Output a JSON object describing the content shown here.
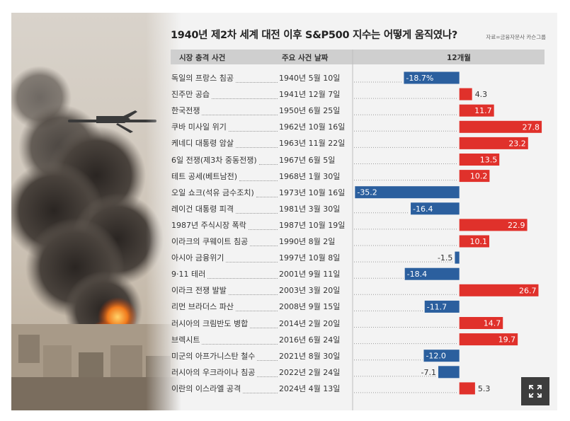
{
  "title": "1940년 제2차 세계 대전 이후 S&P500 지수는 어떻게 움직였나?",
  "source": "자료=금융자문사 카슨그룹",
  "columns": {
    "event": "시장 충격 사건",
    "date": "주요 사건 날짜",
    "value": "12개월"
  },
  "colors": {
    "positive": "#e0312b",
    "negative": "#2b5f9e",
    "header": "#cfcfcf"
  },
  "expand_icon": "expand-icon",
  "chart_data": {
    "type": "bar",
    "orientation": "horizontal",
    "categories": [
      "독일의 프랑스 침공",
      "진주만 공습",
      "한국전쟁",
      "쿠바 미사일 위기",
      "케네디 대통령 암살",
      "6일 전쟁(제3차 중동전쟁)",
      "테트 공세(베트남전)",
      "오일 쇼크(석유 금수조치)",
      "레이건 대통령 피격",
      "1987년 주식시장 폭락",
      "이라크의 쿠웨이트 침공",
      "아시아 금융위기",
      "9·11 테러",
      "이라크 전쟁 발발",
      "리먼 브라더스 파산",
      "러시아의 크림반도 병합",
      "브렉시트",
      "미군의 아프가니스탄 철수",
      "러시아의 우크라이나 침공",
      "이란의 이스라엘 공격"
    ],
    "dates": [
      "1940년 5월 10일",
      "1941년 12월 7일",
      "1950년 6월 25일",
      "1962년 10월 16일",
      "1963년 11월 22일",
      "1967년 6월 5일",
      "1968년 1월 30일",
      "1973년 10월 16일",
      "1981년 3월 30일",
      "1987년 10월 19일",
      "1990년 8월 2일",
      "1997년 10월 8일",
      "2001년 9월 11일",
      "2003년 3월 20일",
      "2008년 9월 15일",
      "2014년 2월 20일",
      "2016년 6월 24일",
      "2021년 8월 30일",
      "2022년 2월 24일",
      "2024년 4월 13일"
    ],
    "values": [
      -18.7,
      4.3,
      11.7,
      27.8,
      23.2,
      13.5,
      10.2,
      -35.2,
      -16.4,
      22.9,
      10.1,
      -1.5,
      -18.4,
      26.7,
      -11.7,
      14.7,
      19.7,
      -12.0,
      -7.1,
      5.3
    ],
    "labels": [
      "-18.7%",
      "4.3",
      "11.7",
      "27.8",
      "23.2",
      "13.5",
      "10.2",
      "-35.2",
      "-16.4",
      "22.9",
      "10.1",
      "-1.5",
      "-18.4",
      "26.7",
      "-11.7",
      "14.7",
      "19.7",
      "-12.0",
      "-7.1",
      "5.3"
    ],
    "xlim": [
      -36,
      28.5
    ]
  }
}
